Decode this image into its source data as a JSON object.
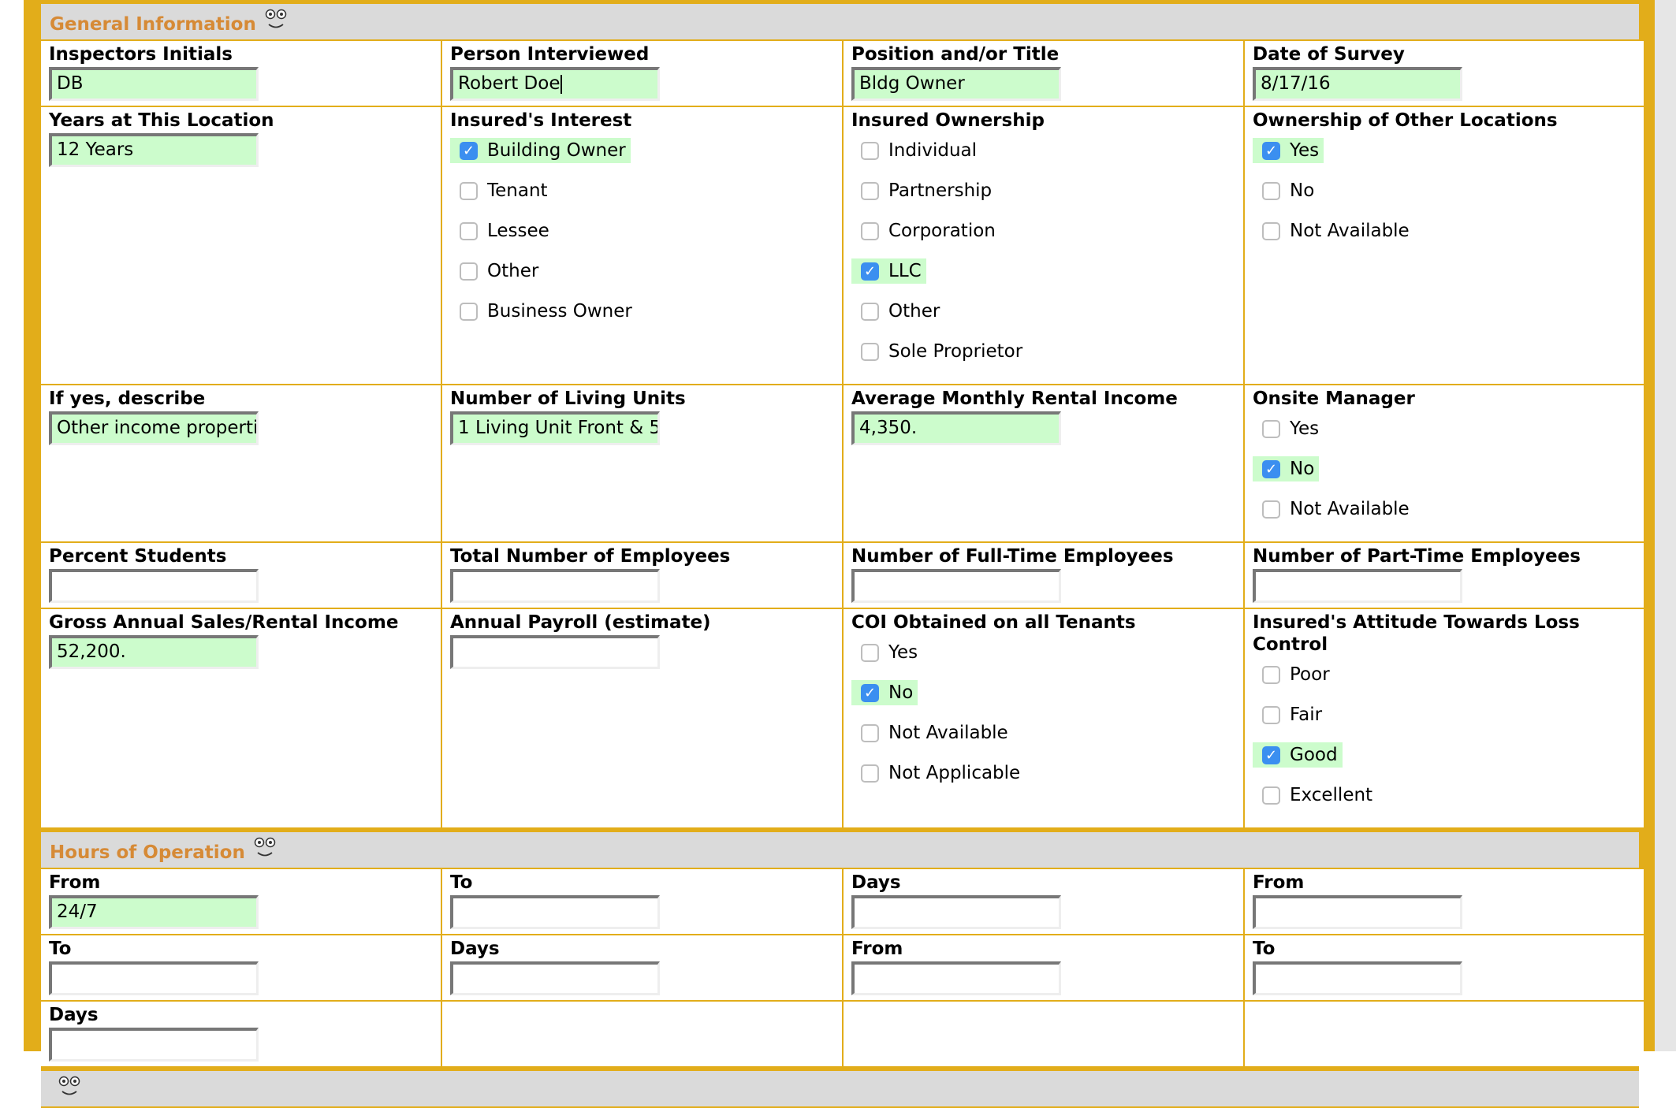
{
  "sections": [
    {
      "title": "General Information",
      "icon": "face-icon",
      "rows": [
        [
          {
            "type": "text",
            "label": "Inspectors Initials",
            "value": "DB"
          },
          {
            "type": "text",
            "label": "Person Interviewed",
            "value": "Robert Doe",
            "focused": true
          },
          {
            "type": "text",
            "label": "Position and/or Title",
            "value": "Bldg Owner"
          },
          {
            "type": "text",
            "label": "Date of Survey",
            "value": "8/17/16"
          }
        ],
        [
          {
            "type": "text",
            "label": "Years at This Location",
            "value": "12 Years"
          },
          {
            "type": "checks",
            "label": "Insured's Interest",
            "options": [
              {
                "label": "Building Owner",
                "checked": true
              },
              {
                "label": "Tenant",
                "checked": false
              },
              {
                "label": "Lessee",
                "checked": false
              },
              {
                "label": "Other",
                "checked": false
              },
              {
                "label": "Business Owner",
                "checked": false
              }
            ]
          },
          {
            "type": "checks",
            "label": "Insured Ownership",
            "options": [
              {
                "label": "Individual",
                "checked": false
              },
              {
                "label": "Partnership",
                "checked": false
              },
              {
                "label": "Corporation",
                "checked": false
              },
              {
                "label": "LLC",
                "checked": true
              },
              {
                "label": "Other",
                "checked": false
              },
              {
                "label": "Sole Proprietor",
                "checked": false
              }
            ]
          },
          {
            "type": "checks",
            "label": "Ownership of Other Locations",
            "options": [
              {
                "label": "Yes",
                "checked": true
              },
              {
                "label": "No",
                "checked": false
              },
              {
                "label": "Not Available",
                "checked": false
              }
            ]
          }
        ],
        [
          {
            "type": "text",
            "label": "If yes, describe",
            "value": "Other income properties"
          },
          {
            "type": "text",
            "label": "Number of Living Units",
            "value": "1 Living Unit Front & 5"
          },
          {
            "type": "text",
            "label": "Average Monthly Rental Income",
            "value": "4,350."
          },
          {
            "type": "checks",
            "label": "Onsite Manager",
            "options": [
              {
                "label": "Yes",
                "checked": false
              },
              {
                "label": "No",
                "checked": true
              },
              {
                "label": "Not Available",
                "checked": false
              }
            ]
          }
        ],
        [
          {
            "type": "text",
            "label": "Percent Students",
            "value": ""
          },
          {
            "type": "text",
            "label": "Total Number of Employees",
            "value": ""
          },
          {
            "type": "text",
            "label": "Number of Full-Time Employees",
            "value": ""
          },
          {
            "type": "text",
            "label": "Number of Part-Time Employees",
            "value": ""
          }
        ],
        [
          {
            "type": "text",
            "label": "Gross Annual Sales/Rental Income",
            "value": "52,200."
          },
          {
            "type": "text",
            "label": "Annual Payroll (estimate)",
            "value": ""
          },
          {
            "type": "checks",
            "label": "COI Obtained on all Tenants",
            "options": [
              {
                "label": "Yes",
                "checked": false
              },
              {
                "label": "No",
                "checked": true
              },
              {
                "label": "Not Available",
                "checked": false
              },
              {
                "label": "Not Applicable",
                "checked": false
              }
            ]
          },
          {
            "type": "checks",
            "label": "Insured's Attitude Towards Loss Control",
            "options": [
              {
                "label": "Poor",
                "checked": false
              },
              {
                "label": "Fair",
                "checked": false
              },
              {
                "label": "Good",
                "checked": true
              },
              {
                "label": "Excellent",
                "checked": false
              }
            ]
          }
        ]
      ]
    },
    {
      "title": "Hours of Operation",
      "icon": "face-icon",
      "rows": [
        [
          {
            "type": "text",
            "label": "From",
            "value": "24/7"
          },
          {
            "type": "text",
            "label": "To",
            "value": ""
          },
          {
            "type": "text",
            "label": "Days",
            "value": ""
          },
          {
            "type": "text",
            "label": "From",
            "value": ""
          }
        ],
        [
          {
            "type": "text",
            "label": "To",
            "value": ""
          },
          {
            "type": "text",
            "label": "Days",
            "value": ""
          },
          {
            "type": "text",
            "label": "From",
            "value": ""
          },
          {
            "type": "text",
            "label": "To",
            "value": ""
          }
        ],
        [
          {
            "type": "text",
            "label": "Days",
            "value": ""
          },
          {
            "type": "empty"
          },
          {
            "type": "empty"
          },
          {
            "type": "empty"
          }
        ]
      ]
    },
    {
      "title": "",
      "icon": "face-icon",
      "rows": []
    }
  ]
}
